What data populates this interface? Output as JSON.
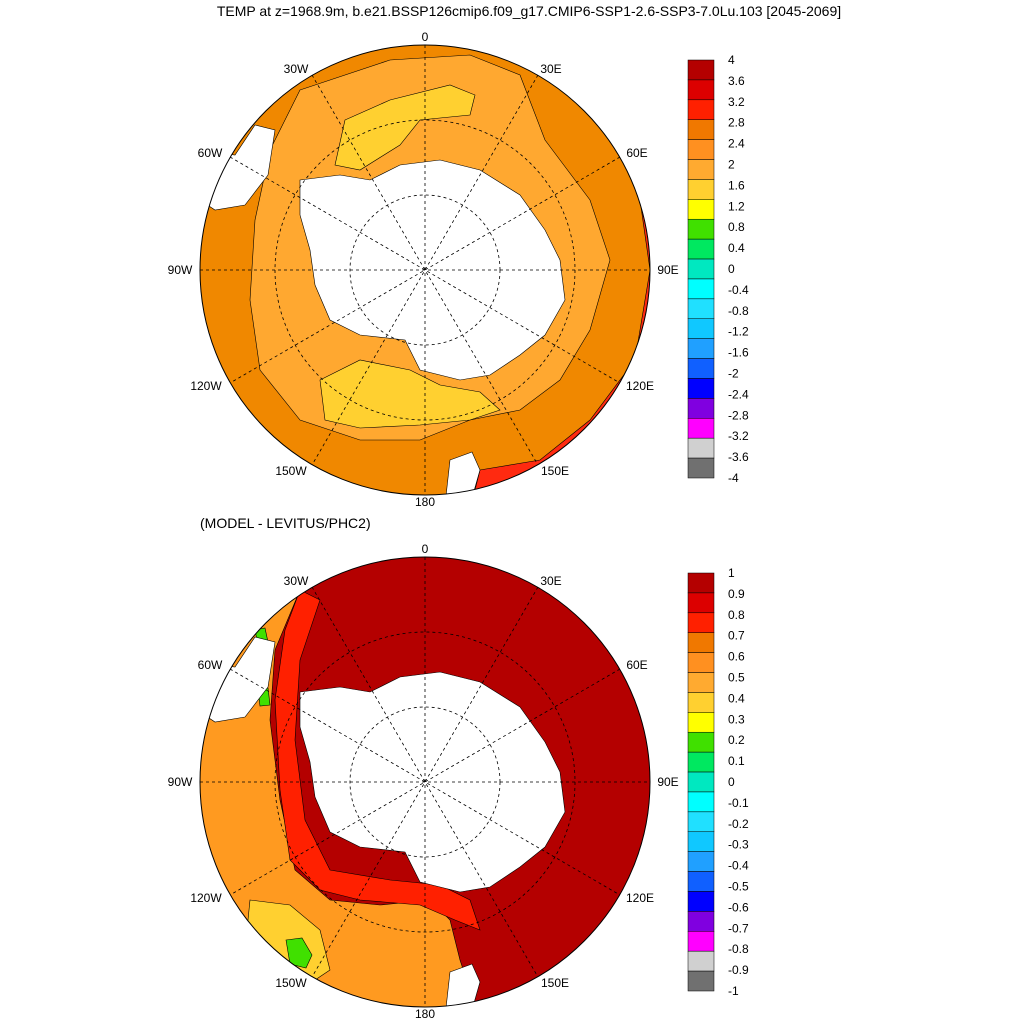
{
  "title": "TEMP at z=1968.9m, b.e21.BSSP126cmip6.f09_g17.CMIP6-SSP1-2.6-SSP3-7.0Lu.103 [2045-2069]",
  "panels": [
    {
      "id": "top",
      "subtitle": "",
      "lon_labels": [
        "0",
        "30E",
        "60E",
        "90E",
        "120E",
        "150E",
        "180",
        "150W",
        "120W",
        "90W",
        "60W",
        "30W"
      ],
      "colorbar": {
        "labels": [
          "4",
          "3.6",
          "3.2",
          "2.8",
          "2.4",
          "2",
          "1.6",
          "1.2",
          "0.8",
          "0.4",
          "0",
          "-0.4",
          "-0.8",
          "-1.2",
          "-1.6",
          "-2",
          "-2.4",
          "-2.8",
          "-3.2",
          "-3.6",
          "-4"
        ],
        "colors": [
          "#b40000",
          "#dc0000",
          "#ff2000",
          "#f07800",
          "#ff9020",
          "#ffaa30",
          "#ffd030",
          "#ffff00",
          "#40e000",
          "#00e860",
          "#00e8c0",
          "#00ffff",
          "#20e0ff",
          "#10c8ff",
          "#20a0ff",
          "#1060ff",
          "#0000ff",
          "#8000e0",
          "#ff00ff",
          "#d0d0d0",
          "#707070"
        ]
      }
    },
    {
      "id": "bottom",
      "subtitle": "(MODEL - LEVITUS/PHC2)",
      "lon_labels": [
        "0",
        "30E",
        "60E",
        "90E",
        "120E",
        "150E",
        "180",
        "150W",
        "120W",
        "90W",
        "60W",
        "30W"
      ],
      "colorbar": {
        "labels": [
          "1",
          "0.9",
          "0.8",
          "0.7",
          "0.6",
          "0.5",
          "0.4",
          "0.3",
          "0.2",
          "0.1",
          "0",
          "-0.1",
          "-0.2",
          "-0.3",
          "-0.4",
          "-0.5",
          "-0.6",
          "-0.7",
          "-0.8",
          "-0.9",
          "-1"
        ],
        "colors": [
          "#b40000",
          "#dc0000",
          "#ff2000",
          "#f07800",
          "#ff9020",
          "#ffaa30",
          "#ffd030",
          "#ffff00",
          "#40e000",
          "#00e860",
          "#00e8c0",
          "#00ffff",
          "#20e0ff",
          "#10c8ff",
          "#20a0ff",
          "#1060ff",
          "#0000ff",
          "#8000e0",
          "#ff00ff",
          "#d0d0d0",
          "#707070"
        ]
      }
    }
  ]
}
